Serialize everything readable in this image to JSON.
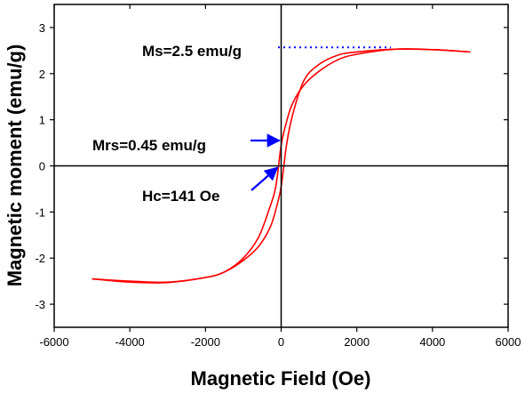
{
  "chart_data": {
    "type": "line",
    "title": "",
    "xlabel": "Magnetic Field (Oe)",
    "ylabel": "Magnetic moment (emu/g)",
    "xlim": [
      -6000,
      6000
    ],
    "ylim": [
      -3.5,
      3.5
    ],
    "xticks": [
      -6000,
      -4000,
      -2000,
      0,
      2000,
      4000,
      6000
    ],
    "yticks": [
      -3,
      -2,
      -1,
      0,
      1,
      2,
      3
    ],
    "grid": false,
    "legend": "none",
    "line_color": "#ff0000",
    "series": [
      {
        "values": [
          {
            "x": -5000,
            "y": -2.45
          },
          {
            "x": -4000,
            "y": -2.5
          },
          {
            "x": -3000,
            "y": -2.52
          },
          {
            "x": -2000,
            "y": -2.42
          },
          {
            "x": -1500,
            "y": -2.3
          },
          {
            "x": -1000,
            "y": -2.0
          },
          {
            "x": -600,
            "y": -1.55
          },
          {
            "x": -300,
            "y": -0.9
          },
          {
            "x": -141,
            "y": -0.45
          },
          {
            "x": 0,
            "y": 0.45
          },
          {
            "x": 141,
            "y": 0.95
          },
          {
            "x": 300,
            "y": 1.35
          },
          {
            "x": 600,
            "y": 1.75
          },
          {
            "x": 1000,
            "y": 2.05
          },
          {
            "x": 1500,
            "y": 2.3
          },
          {
            "x": 2000,
            "y": 2.42
          },
          {
            "x": 3000,
            "y": 2.53
          },
          {
            "x": 4000,
            "y": 2.52
          },
          {
            "x": 5000,
            "y": 2.47
          }
        ]
      },
      {
        "values": [
          {
            "x": 5000,
            "y": 2.47
          },
          {
            "x": 4000,
            "y": 2.52
          },
          {
            "x": 3000,
            "y": 2.53
          },
          {
            "x": 2000,
            "y": 2.47
          },
          {
            "x": 1500,
            "y": 2.4
          },
          {
            "x": 1000,
            "y": 2.2
          },
          {
            "x": 600,
            "y": 1.85
          },
          {
            "x": 300,
            "y": 1.1
          },
          {
            "x": 141,
            "y": 0.45
          },
          {
            "x": 0,
            "y": -0.45
          },
          {
            "x": -141,
            "y": -0.95
          },
          {
            "x": -300,
            "y": -1.35
          },
          {
            "x": -600,
            "y": -1.75
          },
          {
            "x": -1000,
            "y": -2.05
          },
          {
            "x": -1500,
            "y": -2.3
          },
          {
            "x": -2000,
            "y": -2.42
          },
          {
            "x": -3000,
            "y": -2.53
          },
          {
            "x": -4000,
            "y": -2.52
          },
          {
            "x": -5000,
            "y": -2.45
          }
        ]
      }
    ],
    "annotations": [
      {
        "text": "Ms=2.5 emu/g",
        "value": 2.5
      },
      {
        "text": "Mrs=0.45 emu/g",
        "value": 0.45
      },
      {
        "text": "Hc=141 Oe",
        "value": 141
      }
    ],
    "annotation_color": "#0000ff"
  }
}
